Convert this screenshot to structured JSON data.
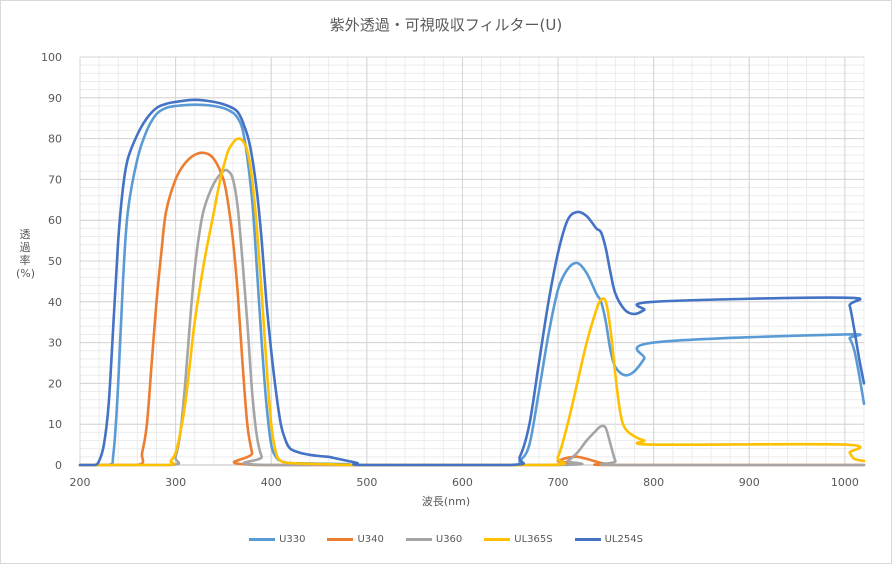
{
  "chart_data": {
    "type": "line",
    "title": "紫外透過・可視吸収フィルター(U)",
    "xlabel": "波長(nm)",
    "ylabel": "透過率(%)",
    "xlim": [
      200,
      1020
    ],
    "ylim": [
      0,
      100
    ],
    "x_ticks": [
      200,
      300,
      400,
      500,
      600,
      700,
      800,
      900,
      1000
    ],
    "y_ticks": [
      0,
      10,
      20,
      30,
      40,
      50,
      60,
      70,
      80,
      90,
      100
    ],
    "grid": true,
    "legend_position": "bottom",
    "series": [
      {
        "name": "U330",
        "color": "#5b9bd5",
        "points": [
          [
            200,
            0
          ],
          [
            230,
            0
          ],
          [
            235,
            3
          ],
          [
            240,
            20
          ],
          [
            245,
            45
          ],
          [
            250,
            62
          ],
          [
            260,
            75
          ],
          [
            270,
            82
          ],
          [
            280,
            86
          ],
          [
            290,
            87.5
          ],
          [
            300,
            88
          ],
          [
            320,
            88.3
          ],
          [
            340,
            88
          ],
          [
            355,
            87
          ],
          [
            365,
            85
          ],
          [
            372,
            80
          ],
          [
            380,
            65
          ],
          [
            385,
            48
          ],
          [
            390,
            30
          ],
          [
            395,
            15
          ],
          [
            400,
            5
          ],
          [
            405,
            2
          ],
          [
            410,
            1
          ],
          [
            420,
            0.5
          ],
          [
            440,
            0.4
          ],
          [
            460,
            0.3
          ],
          [
            480,
            0.2
          ],
          [
            500,
            0
          ],
          [
            650,
            0
          ],
          [
            660,
            1
          ],
          [
            670,
            5
          ],
          [
            680,
            18
          ],
          [
            690,
            32
          ],
          [
            700,
            43
          ],
          [
            710,
            48
          ],
          [
            720,
            49.5
          ],
          [
            730,
            47
          ],
          [
            740,
            42
          ],
          [
            745,
            40
          ],
          [
            750,
            35
          ],
          [
            755,
            28
          ],
          [
            760,
            24
          ],
          [
            770,
            22
          ],
          [
            780,
            23
          ],
          [
            790,
            26
          ],
          [
            800,
            30
          ],
          [
            1000,
            32
          ],
          [
            1005,
            31
          ],
          [
            1010,
            28
          ],
          [
            1015,
            22
          ],
          [
            1020,
            15
          ]
        ]
      },
      {
        "name": "U340",
        "color": "#ed7d31",
        "points": [
          [
            200,
            0
          ],
          [
            260,
            0
          ],
          [
            265,
            3
          ],
          [
            270,
            10
          ],
          [
            275,
            25
          ],
          [
            280,
            40
          ],
          [
            285,
            52
          ],
          [
            290,
            62
          ],
          [
            300,
            70
          ],
          [
            310,
            74
          ],
          [
            320,
            76
          ],
          [
            330,
            76.5
          ],
          [
            340,
            75
          ],
          [
            350,
            70
          ],
          [
            355,
            64
          ],
          [
            360,
            55
          ],
          [
            365,
            42
          ],
          [
            370,
            25
          ],
          [
            375,
            10
          ],
          [
            380,
            3
          ],
          [
            385,
            0
          ],
          [
            690,
            0
          ],
          [
            700,
            1
          ],
          [
            710,
            1.8
          ],
          [
            720,
            2
          ],
          [
            730,
            1.5
          ],
          [
            740,
            0.8
          ],
          [
            750,
            0.3
          ],
          [
            760,
            0
          ],
          [
            1020,
            0
          ]
        ]
      },
      {
        "name": "U360",
        "color": "#a5a5a5",
        "points": [
          [
            200,
            0
          ],
          [
            295,
            0
          ],
          [
            300,
            2
          ],
          [
            305,
            8
          ],
          [
            310,
            20
          ],
          [
            315,
            35
          ],
          [
            320,
            48
          ],
          [
            325,
            57
          ],
          [
            330,
            63
          ],
          [
            340,
            69
          ],
          [
            350,
            72
          ],
          [
            355,
            72
          ],
          [
            360,
            70
          ],
          [
            365,
            63
          ],
          [
            370,
            50
          ],
          [
            375,
            35
          ],
          [
            380,
            18
          ],
          [
            385,
            7
          ],
          [
            390,
            2
          ],
          [
            395,
            0
          ],
          [
            700,
            0
          ],
          [
            710,
            1
          ],
          [
            720,
            3
          ],
          [
            730,
            6
          ],
          [
            740,
            8.5
          ],
          [
            745,
            9.5
          ],
          [
            750,
            9
          ],
          [
            755,
            5
          ],
          [
            760,
            1
          ],
          [
            765,
            0
          ],
          [
            1020,
            0
          ]
        ]
      },
      {
        "name": "UL365S",
        "color": "#ffc000",
        "points": [
          [
            200,
            0
          ],
          [
            290,
            0
          ],
          [
            295,
            1
          ],
          [
            300,
            3
          ],
          [
            305,
            8
          ],
          [
            310,
            15
          ],
          [
            315,
            25
          ],
          [
            320,
            35
          ],
          [
            330,
            50
          ],
          [
            340,
            62
          ],
          [
            345,
            68
          ],
          [
            350,
            73
          ],
          [
            355,
            77
          ],
          [
            360,
            79
          ],
          [
            365,
            80
          ],
          [
            370,
            79.5
          ],
          [
            375,
            77
          ],
          [
            380,
            70
          ],
          [
            385,
            58
          ],
          [
            390,
            42
          ],
          [
            395,
            25
          ],
          [
            400,
            10
          ],
          [
            405,
            3
          ],
          [
            410,
            1
          ],
          [
            420,
            0.5
          ],
          [
            440,
            0.3
          ],
          [
            460,
            0.2
          ],
          [
            500,
            0
          ],
          [
            690,
            0
          ],
          [
            700,
            2
          ],
          [
            710,
            10
          ],
          [
            720,
            20
          ],
          [
            730,
            30
          ],
          [
            740,
            38
          ],
          [
            745,
            40.5
          ],
          [
            750,
            40
          ],
          [
            755,
            33
          ],
          [
            760,
            22
          ],
          [
            765,
            13
          ],
          [
            770,
            9
          ],
          [
            780,
            7
          ],
          [
            790,
            6
          ],
          [
            800,
            5
          ],
          [
            1000,
            5
          ],
          [
            1005,
            3
          ],
          [
            1010,
            1.5
          ],
          [
            1020,
            1
          ]
        ]
      },
      {
        "name": "UL254S",
        "color": "#4472c4",
        "points": [
          [
            200,
            0
          ],
          [
            215,
            0
          ],
          [
            220,
            1
          ],
          [
            225,
            5
          ],
          [
            230,
            15
          ],
          [
            235,
            35
          ],
          [
            240,
            55
          ],
          [
            245,
            68
          ],
          [
            250,
            75
          ],
          [
            260,
            81
          ],
          [
            270,
            85
          ],
          [
            280,
            87.5
          ],
          [
            290,
            88.5
          ],
          [
            300,
            89
          ],
          [
            320,
            89.5
          ],
          [
            340,
            89
          ],
          [
            355,
            88
          ],
          [
            365,
            86.5
          ],
          [
            372,
            83
          ],
          [
            378,
            78
          ],
          [
            385,
            67
          ],
          [
            390,
            55
          ],
          [
            395,
            40
          ],
          [
            400,
            28
          ],
          [
            405,
            18
          ],
          [
            410,
            10
          ],
          [
            415,
            6
          ],
          [
            420,
            4
          ],
          [
            430,
            3
          ],
          [
            440,
            2.5
          ],
          [
            450,
            2.2
          ],
          [
            460,
            2
          ],
          [
            470,
            1.5
          ],
          [
            480,
            1
          ],
          [
            490,
            0.5
          ],
          [
            500,
            0
          ],
          [
            650,
            0
          ],
          [
            660,
            2
          ],
          [
            670,
            10
          ],
          [
            680,
            25
          ],
          [
            690,
            40
          ],
          [
            700,
            52
          ],
          [
            710,
            60
          ],
          [
            720,
            62
          ],
          [
            730,
            61
          ],
          [
            740,
            58
          ],
          [
            745,
            57
          ],
          [
            750,
            53
          ],
          [
            755,
            47
          ],
          [
            760,
            42
          ],
          [
            770,
            38
          ],
          [
            780,
            37
          ],
          [
            790,
            38
          ],
          [
            800,
            40
          ],
          [
            1000,
            41
          ],
          [
            1005,
            39
          ],
          [
            1010,
            33
          ],
          [
            1015,
            26
          ],
          [
            1020,
            20
          ]
        ]
      }
    ]
  }
}
